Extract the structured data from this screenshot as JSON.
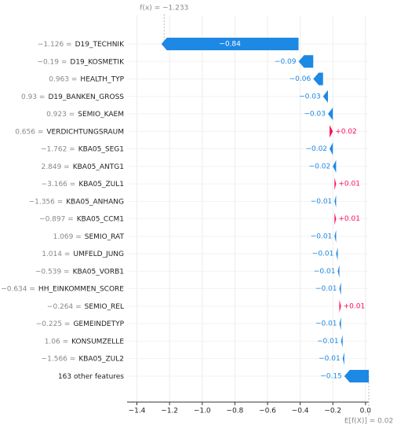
{
  "chart_data": {
    "type": "waterfall",
    "features": [
      "D19_TECHNIK",
      "D19_KOSMETIK",
      "HEALTH_TYP",
      "D19_BANKEN_GROSS",
      "SEMIO_KAEM",
      "VERDICHTUNGSRAUM",
      "KBA05_SEG1",
      "KBA05_ANTG1",
      "KBA05_ZUL1",
      "KBA05_ANHANG",
      "KBA05_CCM1",
      "SEMIO_RAT",
      "UMFELD_JUNG",
      "KBA05_VORB1",
      "HH_EINKOMMEN_SCORE",
      "SEMIO_REL",
      "GEMEINDETYP",
      "KONSUMZELLE",
      "KBA05_ZUL2",
      "163 other features"
    ],
    "feature_values": [
      "−1.126 =",
      "−0.19 =",
      "0.963 =",
      "0.93 =",
      "0.923 =",
      "0.656 =",
      "−1.762 =",
      "2.849 =",
      "−3.166 =",
      "−1.356 =",
      "−0.897 =",
      "1.069 =",
      "1.014 =",
      "−0.539 =",
      "−0.634 =",
      "−0.264 =",
      "−0.225 =",
      "1.06 =",
      "−1.566 =",
      null
    ],
    "series": [
      {
        "values": [
          -0.84,
          -0.09,
          -0.06,
          -0.03,
          -0.03,
          0.02,
          -0.02,
          -0.02,
          0.01,
          -0.01,
          0.01,
          -0.01,
          -0.01,
          -0.01,
          -0.01,
          0.01,
          -0.01,
          -0.01,
          -0.01,
          -0.15
        ],
        "value_labels": [
          "−0.84",
          "−0.09",
          "−0.06",
          "−0.03",
          "−0.03",
          "+0.02",
          "−0.02",
          "−0.02",
          "+0.01",
          "−0.01",
          "+0.01",
          "−0.01",
          "−0.01",
          "−0.01",
          "−0.01",
          "+0.01",
          "−0.01",
          "−0.01",
          "−0.01",
          "−0.15"
        ]
      }
    ],
    "colors": {
      "positive": "#ff0d57",
      "negative": "#1e88e5"
    },
    "expected": {
      "value": 0.02,
      "label": "E[f(X)] = 0.02"
    },
    "output": {
      "value": -1.233,
      "label": "f(x) = −1.233"
    },
    "xlim": [
      -1.46,
      0.02
    ],
    "xticks": [
      {
        "value": -1.4,
        "label": "−1.4"
      },
      {
        "value": -1.2,
        "label": "−1.2"
      },
      {
        "value": -1.0,
        "label": "−1.0"
      },
      {
        "value": -0.8,
        "label": "−0.8"
      },
      {
        "value": -0.6,
        "label": "−0.6"
      },
      {
        "value": -0.4,
        "label": "−0.4"
      },
      {
        "value": -0.2,
        "label": "−0.2"
      },
      {
        "value": 0.0,
        "label": "0.0"
      }
    ],
    "grid": true
  }
}
